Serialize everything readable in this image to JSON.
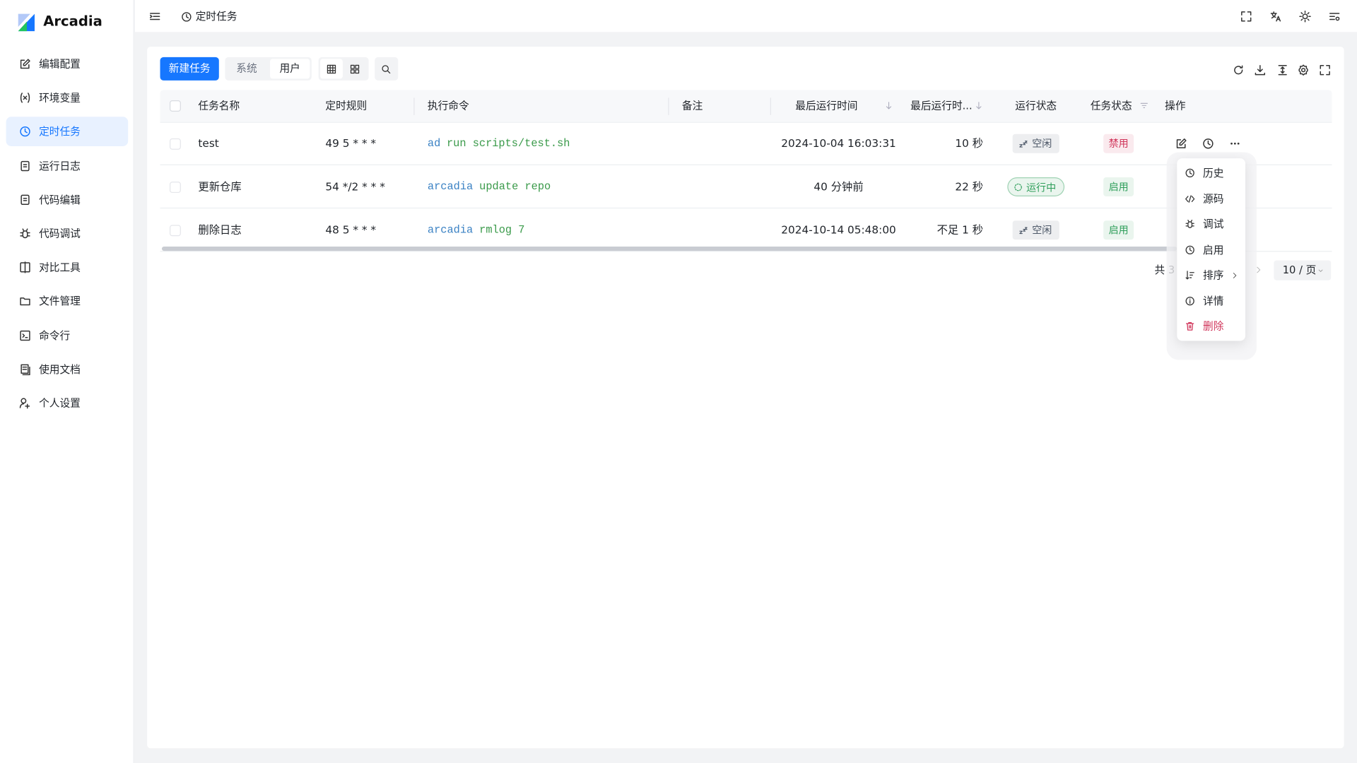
{
  "brand": "Arcadia",
  "nav": {
    "items": [
      "编辑配置",
      "环境变量",
      "定时任务",
      "运行日志",
      "代码编辑",
      "代码调试",
      "对比工具",
      "文件管理",
      "命令行",
      "使用文档",
      "个人设置"
    ],
    "active": 2
  },
  "header": {
    "title": "定时任务"
  },
  "toolbar": {
    "new_task": "新建任务",
    "tabs": [
      "系统",
      "用户"
    ],
    "active_tab": 1
  },
  "table": {
    "columns": [
      "任务名称",
      "定时规则",
      "执行命令",
      "备注",
      "最后运行时间",
      "最后运行时...",
      "运行状态",
      "任务状态",
      "操作"
    ],
    "rows": [
      {
        "name": "test",
        "cron": "49 5 * * *",
        "command": [
          "ad",
          "run scripts/test.sh"
        ],
        "last_run_time": "2024-10-04 16:03:31",
        "duration": "10 秒",
        "run_status": {
          "text": "空闲",
          "color": "#4e5969"
        },
        "task_status": {
          "text": "禁用",
          "color": "#d0355a"
        }
      },
      {
        "name": "更新仓库",
        "cron": "54 */2 * * *",
        "command": [
          "arcadia",
          "update repo"
        ],
        "last_run_time": "40 分钟前",
        "duration": "22 秒",
        "run_status": {
          "text": "运行中",
          "color": "#2e9e5a"
        },
        "task_status": {
          "text": "启用",
          "color": "#2e9e5a"
        }
      },
      {
        "name": "删除日志",
        "cron": "48 5 * * *",
        "command": [
          "arcadia",
          "rmlog 7"
        ],
        "last_run_time": "2024-10-14 05:48:00",
        "duration": "不足 1 秒",
        "run_status": {
          "text": "空闲",
          "color": "#4e5969"
        },
        "task_status": {
          "text": "启用",
          "color": "#2e9e5a"
        }
      }
    ]
  },
  "pagination": {
    "total": "共 3",
    "page_size": "10 / 页"
  },
  "menu": {
    "items": [
      {
        "label": "历史"
      },
      {
        "label": "源码"
      },
      {
        "label": "调试"
      },
      {
        "label": "启用"
      },
      {
        "label": "排序",
        "submenu": true
      },
      {
        "label": "详情"
      },
      {
        "label": "删除",
        "color": "#d0355a"
      }
    ]
  }
}
